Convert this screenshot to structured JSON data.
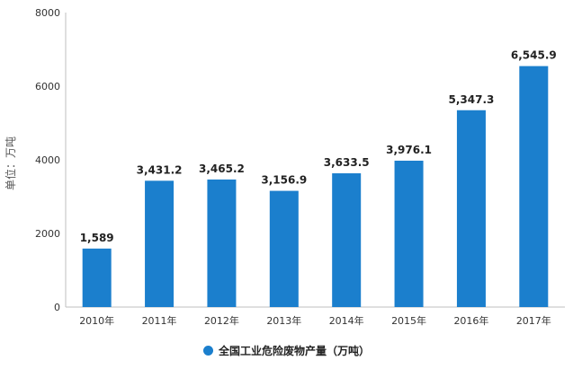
{
  "chart_data": {
    "type": "bar",
    "title": "",
    "xlabel": "",
    "ylabel": "单位：万吨",
    "categories": [
      "2010年",
      "2011年",
      "2012年",
      "2013年",
      "2014年",
      "2015年",
      "2016年",
      "2017年"
    ],
    "series": [
      {
        "name": "全国工业危险废物产量（万吨）",
        "values": [
          1589,
          3431.2,
          3465.2,
          3156.9,
          3633.5,
          3976.1,
          5347.3,
          6545.9
        ],
        "labels": [
          "1,589",
          "3,431.2",
          "3,465.2",
          "3,156.9",
          "3,633.5",
          "3,976.1",
          "5,347.3",
          "6,545.9"
        ]
      }
    ],
    "ylim": [
      0,
      8000
    ],
    "yticks": [
      0,
      2000,
      4000,
      6000,
      8000
    ],
    "grid": false,
    "legend_position": "bottom",
    "bar_color": "#1b7fcd"
  }
}
